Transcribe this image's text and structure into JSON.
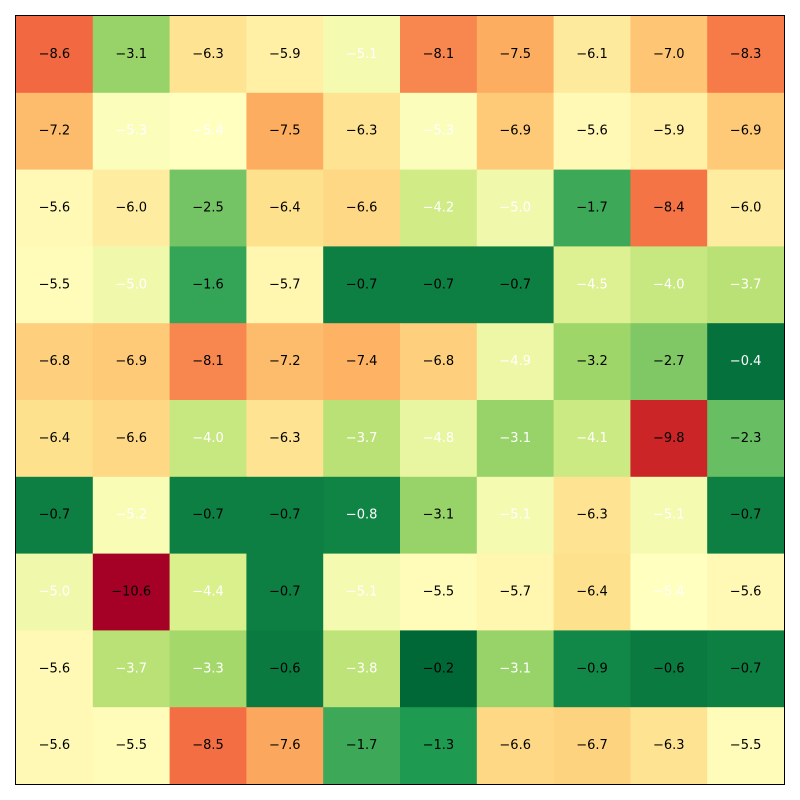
{
  "chart_data": {
    "type": "heatmap",
    "title": "",
    "xlabel": "",
    "ylabel": "",
    "x_ticks": "none",
    "y_ticks": "none",
    "colormap": "RdYlGn",
    "vmin": -10.6,
    "vmax": -0.2,
    "values": [
      [
        -8.6,
        -3.1,
        -6.3,
        -5.9,
        -5.1,
        -8.1,
        -7.5,
        -6.1,
        -7.0,
        -8.3
      ],
      [
        -7.2,
        -5.3,
        -5.4,
        -7.5,
        -6.3,
        -5.3,
        -6.9,
        -5.6,
        -5.9,
        -6.9
      ],
      [
        -5.6,
        -6.0,
        -2.5,
        -6.4,
        -6.6,
        -4.2,
        -5.0,
        -1.7,
        -8.4,
        -6.0
      ],
      [
        -5.5,
        -5.0,
        -1.6,
        -5.7,
        -0.7,
        -0.7,
        -0.7,
        -4.5,
        -4.0,
        -3.7
      ],
      [
        -6.8,
        -6.9,
        -8.1,
        -7.2,
        -7.4,
        -6.8,
        -4.9,
        -3.2,
        -2.7,
        -0.4
      ],
      [
        -6.4,
        -6.6,
        -4.0,
        -6.3,
        -3.7,
        -4.8,
        -3.1,
        -4.1,
        -9.8,
        -2.3
      ],
      [
        -0.7,
        -5.2,
        -0.7,
        -0.7,
        -0.8,
        -3.1,
        -5.1,
        -6.3,
        -5.1,
        -0.7
      ],
      [
        -5.0,
        -10.6,
        -4.4,
        -0.7,
        -5.1,
        -5.5,
        -5.7,
        -6.4,
        -5.4,
        -5.6
      ],
      [
        -5.6,
        -3.7,
        -3.3,
        -0.6,
        -3.8,
        -0.2,
        -3.1,
        -0.9,
        -0.6,
        -0.7
      ],
      [
        -5.6,
        -5.5,
        -8.5,
        -7.6,
        -1.7,
        -1.3,
        -6.6,
        -6.7,
        -6.3,
        -5.5
      ]
    ],
    "white_text_cells": [
      [
        0,
        4
      ],
      [
        1,
        1
      ],
      [
        1,
        2
      ],
      [
        1,
        5
      ],
      [
        2,
        5
      ],
      [
        2,
        6
      ],
      [
        3,
        1
      ],
      [
        3,
        7
      ],
      [
        3,
        8
      ],
      [
        3,
        9
      ],
      [
        4,
        6
      ],
      [
        4,
        9
      ],
      [
        5,
        2
      ],
      [
        5,
        4
      ],
      [
        5,
        5
      ],
      [
        5,
        6
      ],
      [
        5,
        7
      ],
      [
        6,
        1
      ],
      [
        6,
        4
      ],
      [
        6,
        6
      ],
      [
        6,
        8
      ],
      [
        7,
        0
      ],
      [
        7,
        2
      ],
      [
        7,
        4
      ],
      [
        7,
        8
      ],
      [
        8,
        1
      ],
      [
        8,
        2
      ],
      [
        8,
        4
      ],
      [
        8,
        6
      ]
    ]
  }
}
